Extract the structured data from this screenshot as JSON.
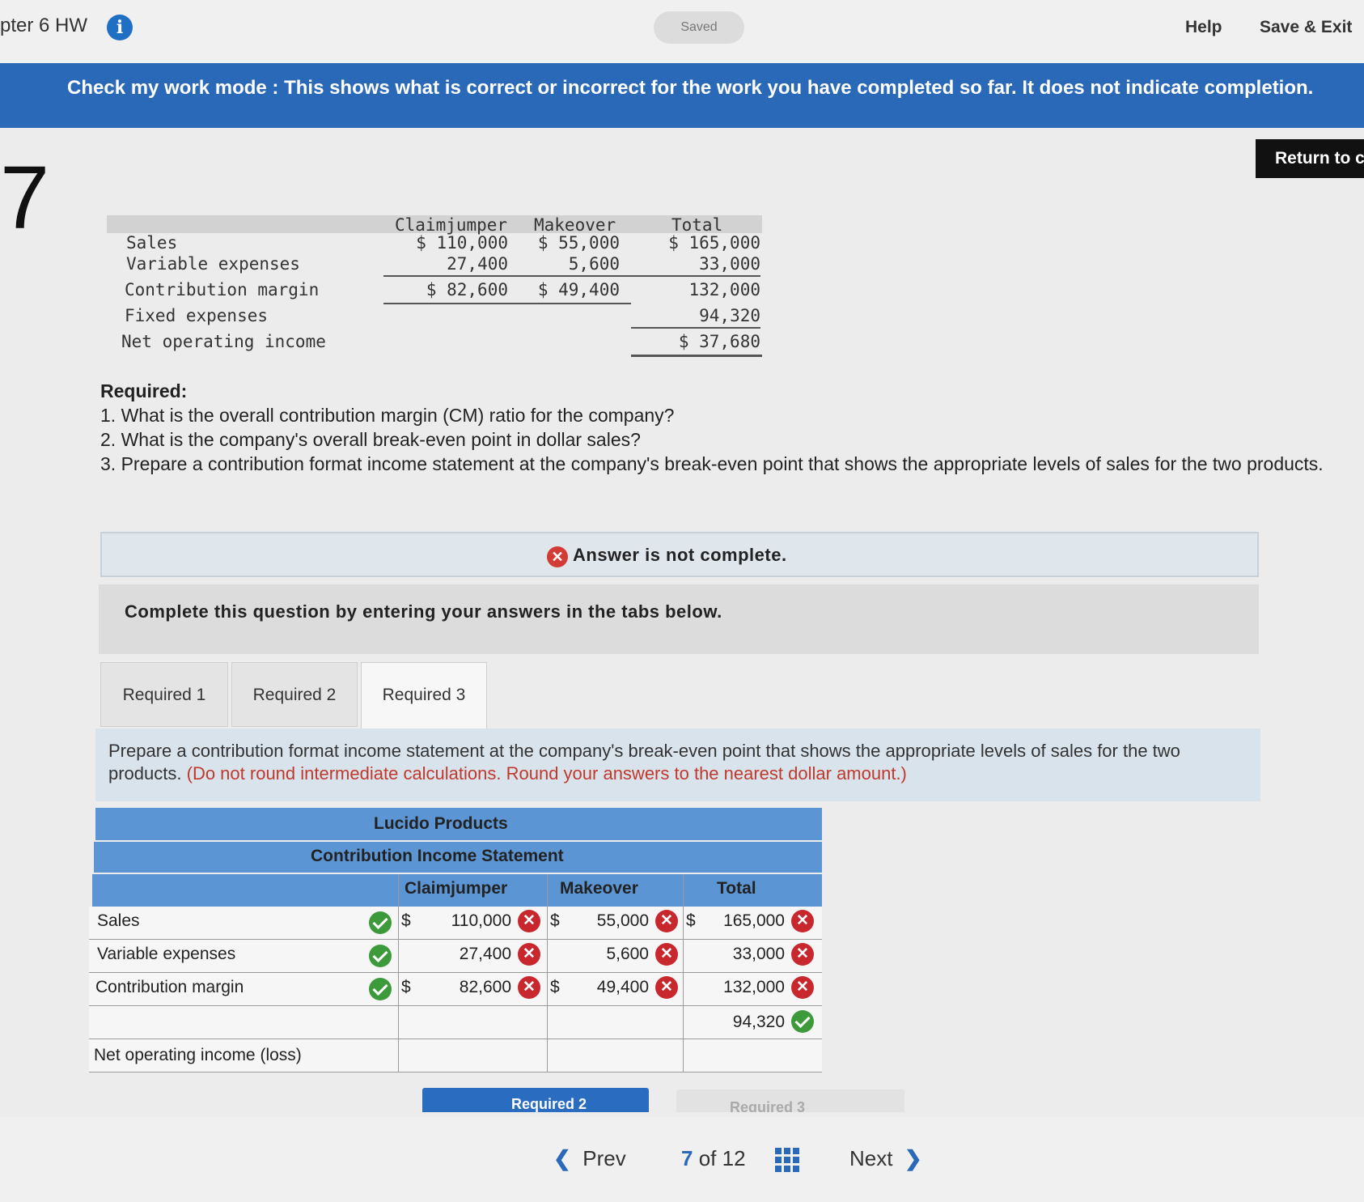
{
  "header": {
    "crumb": "pter 6 HW",
    "saved": "Saved",
    "help": "Help",
    "save_exit": "Save & Exit"
  },
  "banner": {
    "text": "Check my work mode : This shows what is correct or incorrect for the work you have completed so far. It does not indicate completion."
  },
  "return_button": "Return to c",
  "question_number": "7",
  "problem_table": {
    "headers": [
      "Claimjumper",
      "Makeover",
      "Total"
    ],
    "rows": [
      {
        "label": "Sales",
        "c": "$ 110,000",
        "m": "$ 55,000",
        "t": "$ 165,000"
      },
      {
        "label": "Variable expenses",
        "c": "27,400",
        "m": "5,600",
        "t": "33,000"
      },
      {
        "label": "Contribution margin",
        "c": "$ 82,600",
        "m": "$ 49,400",
        "t": "132,000"
      },
      {
        "label": "Fixed expenses",
        "c": "",
        "m": "",
        "t": "94,320"
      },
      {
        "label": "Net operating income",
        "c": "",
        "m": "",
        "t": "$ 37,680"
      }
    ]
  },
  "required": {
    "heading": "Required:",
    "items": [
      "1. What is the overall contribution margin (CM) ratio for the company?",
      "2. What is the company's overall break-even point in dollar sales?",
      "3. Prepare a contribution format income statement at the company's break-even point that shows the appropriate levels of sales for the two products."
    ]
  },
  "status": {
    "text": "Answer is not complete.",
    "icon": "x-circle-icon"
  },
  "complete_prompt": "Complete this question by entering your answers in the tabs below.",
  "tabs": [
    {
      "label": "Required 1",
      "active": false
    },
    {
      "label": "Required 2",
      "active": false
    },
    {
      "label": "Required 3",
      "active": true
    }
  ],
  "instructions": {
    "main": "Prepare a contribution format income statement at the company's break-even point that shows the appropriate levels of sales for the two products.",
    "note": "(Do not round intermediate calculations. Round your answers to the nearest dollar amount.)"
  },
  "statement": {
    "company": "Lucido Products",
    "title": "Contribution Income Statement",
    "columns": [
      "Claimjumper",
      "Makeover",
      "Total"
    ],
    "rows": [
      {
        "label": "Sales",
        "label_ok": true,
        "c": "110,000",
        "c_ok": false,
        "m": "55,000",
        "m_ok": false,
        "t": "165,000",
        "t_ok": false,
        "dollar": true
      },
      {
        "label": "Variable expenses",
        "label_ok": true,
        "c": "27,400",
        "c_ok": false,
        "m": "5,600",
        "m_ok": false,
        "t": "33,000",
        "t_ok": false,
        "dollar": false
      },
      {
        "label": "Contribution margin",
        "label_ok": true,
        "c": "82,600",
        "c_ok": false,
        "m": "49,400",
        "m_ok": false,
        "t": "132,000",
        "t_ok": false,
        "dollar": true
      },
      {
        "label": "",
        "label_ok": null,
        "c": "",
        "m": "",
        "t": "94,320",
        "t_ok": true,
        "dollar": false
      },
      {
        "label": "Net operating income (loss)",
        "label_ok": null,
        "c": "",
        "m": "",
        "t": "",
        "dollar": false
      }
    ],
    "currency": "$"
  },
  "nav": {
    "prev_tab": "Required 2",
    "next_tab": "Required 3",
    "prev": "Prev",
    "next": "Next",
    "current": "7",
    "of_label": "of",
    "total": "12"
  },
  "colors": {
    "accent": "#2a68b8",
    "table_header": "#5b95d4",
    "correct": "#3d9a3a",
    "incorrect": "#c8282d"
  }
}
